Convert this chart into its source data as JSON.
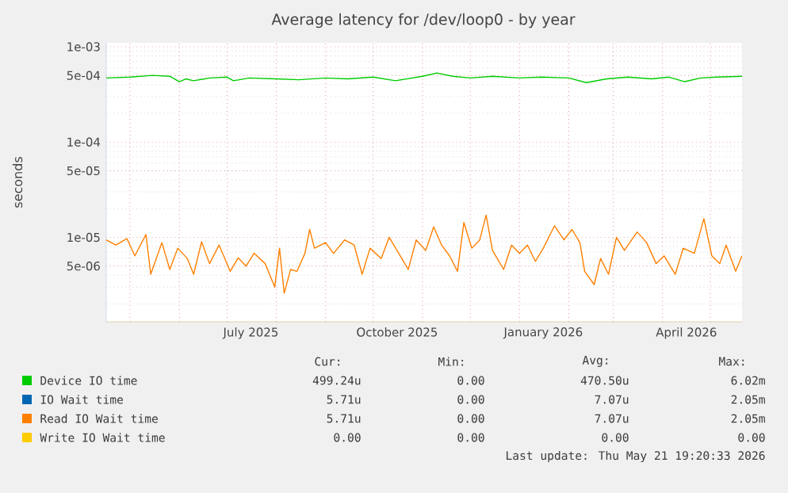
{
  "chart_data": {
    "type": "line",
    "title": "Average latency for /dev/loop0 - by year",
    "ylabel": "seconds",
    "log": "y",
    "grid": true,
    "legend": "bottom",
    "xlim": [
      "2025-04-16",
      "2026-05-21"
    ],
    "xticks": [
      {
        "value": "2025-05-01",
        "label": null
      },
      {
        "value": "2025-06-01",
        "label": null
      },
      {
        "value": "2025-07-01",
        "label": null
      },
      {
        "value": "2025-07-16",
        "label": "July 2025"
      },
      {
        "value": "2025-08-01",
        "label": null
      },
      {
        "value": "2025-09-01",
        "label": null
      },
      {
        "value": "2025-10-01",
        "label": null
      },
      {
        "value": "2025-10-16",
        "label": "October 2025"
      },
      {
        "value": "2025-11-01",
        "label": null
      },
      {
        "value": "2025-12-01",
        "label": null
      },
      {
        "value": "2026-01-01",
        "label": null
      },
      {
        "value": "2026-01-16",
        "label": "January 2026"
      },
      {
        "value": "2026-02-01",
        "label": null
      },
      {
        "value": "2026-03-01",
        "label": null
      },
      {
        "value": "2026-04-01",
        "label": null
      },
      {
        "value": "2026-04-16",
        "label": "April 2026"
      },
      {
        "value": "2026-05-01",
        "label": null
      }
    ],
    "ylim": [
      1.3e-06,
      0.0011
    ],
    "yticks": [
      {
        "value": 5e-06,
        "label": "5e-06"
      },
      {
        "value": 1e-05,
        "label": "1e-05"
      },
      {
        "value": 5e-05,
        "label": "5e-05"
      },
      {
        "value": 0.0001,
        "label": "1e-04"
      },
      {
        "value": 0.0005,
        "label": "5e-04"
      },
      {
        "value": 0.001,
        "label": "1e-03"
      }
    ],
    "series": [
      {
        "name": "Device IO time",
        "color": "#00cc00",
        "x": [
          "2025-04-16",
          "2025-05-01",
          "2025-05-15",
          "2025-05-26",
          "2025-06-01",
          "2025-06-05",
          "2025-06-10",
          "2025-06-20",
          "2025-07-01",
          "2025-07-05",
          "2025-07-15",
          "2025-08-01",
          "2025-08-15",
          "2025-09-01",
          "2025-09-15",
          "2025-10-01",
          "2025-10-15",
          "2025-11-01",
          "2025-11-10",
          "2025-11-20",
          "2025-12-01",
          "2025-12-15",
          "2026-01-01",
          "2026-01-15",
          "2026-02-01",
          "2026-02-12",
          "2026-02-25",
          "2026-03-10",
          "2026-03-25",
          "2026-04-05",
          "2026-04-15",
          "2026-04-25",
          "2026-05-05",
          "2026-05-21"
        ],
        "values": [
          0.00047,
          0.00048,
          0.0005,
          0.00049,
          0.00043,
          0.00046,
          0.00044,
          0.00047,
          0.00048,
          0.00044,
          0.00047,
          0.00046,
          0.00045,
          0.00047,
          0.00046,
          0.00048,
          0.00044,
          0.00049,
          0.00053,
          0.00049,
          0.00047,
          0.00049,
          0.00047,
          0.00048,
          0.00047,
          0.00042,
          0.00046,
          0.00048,
          0.00046,
          0.00048,
          0.00043,
          0.00047,
          0.00048,
          0.00049
        ]
      },
      {
        "name": "IO Wait time",
        "color": "#0066b3",
        "values": [
          null,
          null
        ]
      },
      {
        "name": "Read IO Wait time",
        "color": "#ff8000",
        "x": [
          "2025-04-16",
          "2025-04-22",
          "2025-04-29",
          "2025-05-04",
          "2025-05-11",
          "2025-05-14",
          "2025-05-21",
          "2025-05-26",
          "2025-05-31",
          "2025-06-06",
          "2025-06-10",
          "2025-06-15",
          "2025-06-20",
          "2025-06-26",
          "2025-07-03",
          "2025-07-08",
          "2025-07-13",
          "2025-07-18",
          "2025-07-25",
          "2025-07-31",
          "2025-08-03",
          "2025-08-06",
          "2025-08-10",
          "2025-08-14",
          "2025-08-19",
          "2025-08-22",
          "2025-08-25",
          "2025-09-01",
          "2025-09-06",
          "2025-09-13",
          "2025-09-19",
          "2025-09-24",
          "2025-09-29",
          "2025-10-06",
          "2025-10-11",
          "2025-10-18",
          "2025-10-23",
          "2025-10-28",
          "2025-11-03",
          "2025-11-08",
          "2025-11-13",
          "2025-11-18",
          "2025-11-23",
          "2025-11-27",
          "2025-12-02",
          "2025-12-07",
          "2025-12-11",
          "2025-12-15",
          "2025-12-22",
          "2025-12-27",
          "2026-01-01",
          "2026-01-06",
          "2026-01-11",
          "2026-01-16",
          "2026-01-23",
          "2026-01-29",
          "2026-02-03",
          "2026-02-08",
          "2026-02-11",
          "2026-02-17",
          "2026-02-21",
          "2026-02-26",
          "2026-03-03",
          "2026-03-08",
          "2026-03-16",
          "2026-03-22",
          "2026-03-28",
          "2026-04-02",
          "2026-04-09",
          "2026-04-14",
          "2026-04-21",
          "2026-04-27",
          "2026-05-02",
          "2026-05-07",
          "2026-05-11",
          "2026-05-17",
          "2026-05-21"
        ],
        "values": [
          9.4e-06,
          8.3e-06,
          9.7e-06,
          6.4e-06,
          1.07e-05,
          4.1e-06,
          8.8e-06,
          4.6e-06,
          7.7e-06,
          6e-06,
          4.1e-06,
          9e-06,
          5.3e-06,
          8.3e-06,
          4.4e-06,
          6.1e-06,
          5e-06,
          6.8e-06,
          5.3e-06,
          3e-06,
          7.7e-06,
          2.6e-06,
          4.6e-06,
          4.4e-06,
          6.8e-06,
          1.21e-05,
          7.7e-06,
          8.8e-06,
          6.8e-06,
          9.4e-06,
          8.3e-06,
          4.1e-06,
          7.7e-06,
          6e-06,
          1e-05,
          6.4e-06,
          4.6e-06,
          9.4e-06,
          7.3e-06,
          1.29e-05,
          8.3e-06,
          6.4e-06,
          4.4e-06,
          1.43e-05,
          7.7e-06,
          9.4e-06,
          1.71e-05,
          7.3e-06,
          4.6e-06,
          8.3e-06,
          6.8e-06,
          8.3e-06,
          5.6e-06,
          7.7e-06,
          1.32e-05,
          9.4e-06,
          1.21e-05,
          8.8e-06,
          4.4e-06,
          3.2e-06,
          6e-06,
          4.1e-06,
          1e-05,
          7.3e-06,
          1.14e-05,
          8.8e-06,
          5.3e-06,
          6.4e-06,
          4.1e-06,
          7.7e-06,
          6.8e-06,
          1.57e-05,
          6.4e-06,
          5.3e-06,
          8.3e-06,
          4.4e-06,
          6.4e-06
        ]
      },
      {
        "name": "Write IO Wait time",
        "color": "#ffcc00",
        "values": [
          null,
          null
        ]
      }
    ],
    "annotations": [
      "Cur:",
      "Min:",
      "Avg:",
      "Max:",
      "499.24u",
      "0.00",
      "470.50u",
      "6.02m",
      "5.71u",
      "0.00",
      "7.07u",
      "2.05m",
      "5.71u",
      "0.00",
      "7.07u",
      "2.05m",
      "0.00",
      "0.00",
      "0.00",
      "0.00",
      "Last update: Thu May 21 19:20:33 2026"
    ]
  }
}
